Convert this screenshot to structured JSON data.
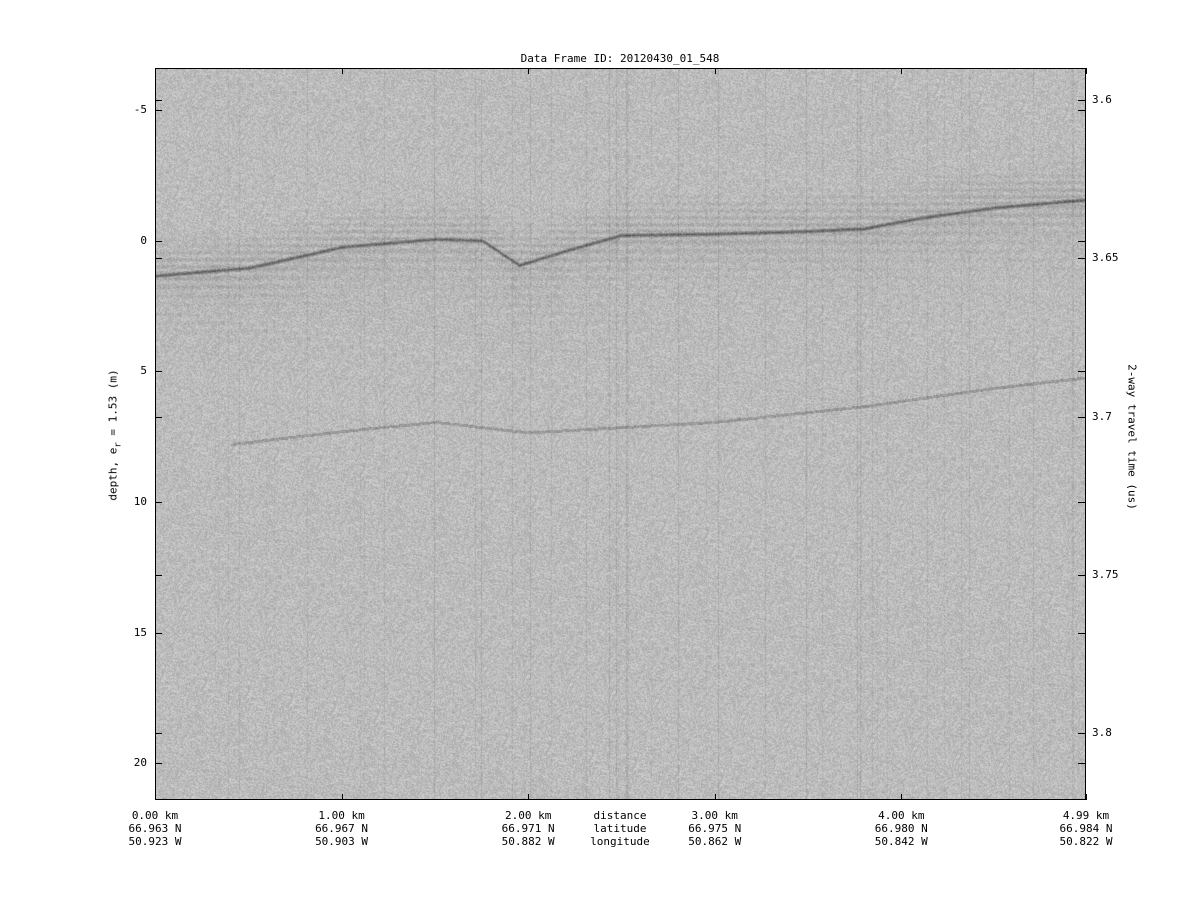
{
  "chart_data": {
    "type": "heatmap",
    "title": "Data Frame ID: 20120430_01_548",
    "ylabel": "depth, e",
    "ylabel_sub": "r",
    "ylabel_suffix": " = 1.53 (m)",
    "y2label": "2-way travel time (us)",
    "ylim": [
      -6.6,
      21.4
    ],
    "y_ticks": [
      -5,
      0,
      5,
      10,
      15,
      20
    ],
    "y2_ticks": [
      "3.6",
      "3.65",
      "3.7",
      "3.75",
      "3.8"
    ],
    "x_ticks": [
      {
        "distance": "0.00 km",
        "latitude": "66.963 N",
        "longitude": "50.923 W",
        "km": 0
      },
      {
        "distance": "1.00 km",
        "latitude": "66.967 N",
        "longitude": "50.903 W",
        "km": 1
      },
      {
        "distance": "2.00 km",
        "latitude": "66.971 N",
        "longitude": "50.882 W",
        "km": 2
      },
      {
        "distance": "3.00 km",
        "latitude": "66.975 N",
        "longitude": "50.862 W",
        "km": 3
      },
      {
        "distance": "4.00 km",
        "latitude": "66.980 N",
        "longitude": "50.842 W",
        "km": 4
      },
      {
        "distance": "4.99 km",
        "latitude": "66.984 N",
        "longitude": "50.822 W",
        "km": 4.99
      }
    ],
    "x_row_labels": [
      "distance",
      "latitude",
      "longitude"
    ],
    "xlim_km": [
      0,
      4.99
    ],
    "colormap": "grayscale",
    "surface_reflector": {
      "km": [
        0,
        0.5,
        1.0,
        1.5,
        1.75,
        1.95,
        2.2,
        2.5,
        3.0,
        3.5,
        3.8,
        4.1,
        4.5,
        4.99
      ],
      "depth_m": [
        1.3,
        1.0,
        0.2,
        -0.1,
        -0.05,
        0.9,
        0.35,
        -0.25,
        -0.3,
        -0.4,
        -0.5,
        -0.9,
        -1.3,
        -1.6
      ]
    },
    "internal_layer": {
      "km": [
        0.4,
        1.0,
        1.5,
        2.0,
        2.5,
        3.0,
        3.8,
        4.5,
        4.99
      ],
      "depth_m": [
        7.75,
        7.25,
        6.9,
        7.3,
        7.1,
        6.9,
        6.3,
        5.6,
        5.2
      ]
    }
  }
}
